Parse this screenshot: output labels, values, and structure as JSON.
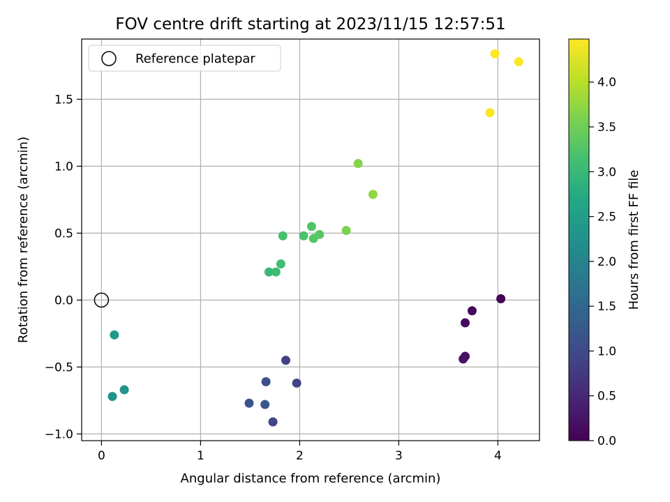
{
  "chart_data": {
    "type": "scatter",
    "title": "FOV centre drift starting at 2023/11/15 12:57:51",
    "xlabel": "Angular distance from reference (arcmin)",
    "ylabel": "Rotation from reference (arcmin)",
    "colorbar_label": "Hours from first FF file",
    "colormap": "viridis",
    "xlim": [
      -0.2,
      4.42
    ],
    "ylim": [
      -1.05,
      1.95
    ],
    "x_ticks": [
      0,
      1,
      2,
      3,
      4
    ],
    "y_ticks": [
      -1.0,
      -0.5,
      0.0,
      0.5,
      1.0,
      1.5
    ],
    "x_tick_labels": [
      "0",
      "1",
      "2",
      "3",
      "4"
    ],
    "y_tick_labels": [
      "−1.0",
      "−0.5",
      "0.0",
      "0.5",
      "1.0",
      "1.5"
    ],
    "colorbar_range": [
      0.0,
      4.48
    ],
    "colorbar_ticks": [
      0.0,
      0.5,
      1.0,
      1.5,
      2.0,
      2.5,
      3.0,
      3.5,
      4.0
    ],
    "colorbar_tick_labels": [
      "0.0",
      "0.5",
      "1.0",
      "1.5",
      "2.0",
      "2.5",
      "3.0",
      "3.5",
      "4.0"
    ],
    "grid": true,
    "legend": {
      "placement": "upper-left",
      "label": "Reference platepar"
    },
    "reference_point": {
      "x": 0,
      "y": 0
    },
    "points": [
      {
        "x": 4.03,
        "y": 0.01,
        "hours": 0.02
      },
      {
        "x": 3.74,
        "y": -0.08,
        "hours": 0.08
      },
      {
        "x": 3.67,
        "y": -0.17,
        "hours": 0.12
      },
      {
        "x": 3.67,
        "y": -0.42,
        "hours": 0.18
      },
      {
        "x": 3.65,
        "y": -0.44,
        "hours": 0.22
      },
      {
        "x": 1.86,
        "y": -0.45,
        "hours": 0.85
      },
      {
        "x": 1.97,
        "y": -0.62,
        "hours": 0.9
      },
      {
        "x": 1.66,
        "y": -0.61,
        "hours": 1.1
      },
      {
        "x": 1.73,
        "y": -0.91,
        "hours": 0.95
      },
      {
        "x": 1.49,
        "y": -0.77,
        "hours": 1.15
      },
      {
        "x": 1.65,
        "y": -0.78,
        "hours": 1.2
      },
      {
        "x": 0.11,
        "y": -0.72,
        "hours": 2.25
      },
      {
        "x": 0.23,
        "y": -0.67,
        "hours": 2.3
      },
      {
        "x": 0.13,
        "y": -0.26,
        "hours": 2.4
      },
      {
        "x": 1.69,
        "y": 0.21,
        "hours": 3.0
      },
      {
        "x": 1.76,
        "y": 0.21,
        "hours": 3.05
      },
      {
        "x": 1.81,
        "y": 0.27,
        "hours": 3.1
      },
      {
        "x": 1.83,
        "y": 0.48,
        "hours": 3.15
      },
      {
        "x": 2.04,
        "y": 0.48,
        "hours": 3.2
      },
      {
        "x": 2.12,
        "y": 0.55,
        "hours": 3.25
      },
      {
        "x": 2.14,
        "y": 0.46,
        "hours": 3.28
      },
      {
        "x": 2.2,
        "y": 0.49,
        "hours": 3.3
      },
      {
        "x": 2.47,
        "y": 0.52,
        "hours": 3.6
      },
      {
        "x": 2.59,
        "y": 1.02,
        "hours": 3.65
      },
      {
        "x": 2.74,
        "y": 0.79,
        "hours": 3.75
      },
      {
        "x": 3.92,
        "y": 1.4,
        "hours": 4.45
      },
      {
        "x": 3.97,
        "y": 1.84,
        "hours": 4.48
      },
      {
        "x": 4.21,
        "y": 1.78,
        "hours": 4.48
      }
    ]
  }
}
